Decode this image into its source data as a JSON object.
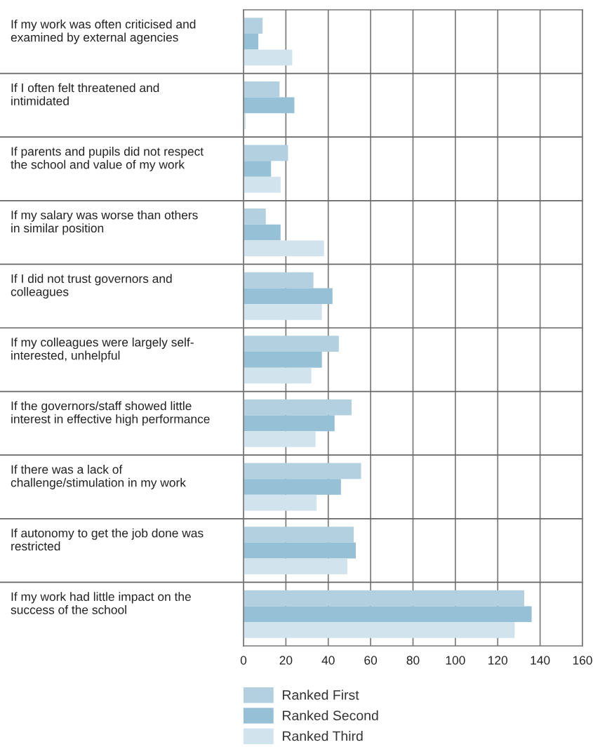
{
  "chart_data": {
    "type": "bar",
    "orientation": "horizontal",
    "categories": [
      "If my work was often criticised and\nexamined by external agencies",
      "If I often felt threatened and\nintimidated",
      "If parents and pupils did not respect\nthe school and value of my work",
      "If my salary was worse than others\nin similar position",
      "If I did not trust governors and\ncolleagues",
      "If my colleagues were largely self-\ninterested, unhelpful",
      "If the governors/staff showed little\ninterest in effective high performance",
      "If there was a lack of\nchallenge/stimulation in my work",
      "If autonomy to get the job done was\nrestricted",
      "If my work had little impact on the\nsuccess of the school"
    ],
    "series": [
      {
        "name": "Ranked First",
        "color": "#b2d0e0",
        "values": [
          9,
          17,
          21,
          10.5,
          33,
          45,
          51,
          55.5,
          52,
          132.5
        ]
      },
      {
        "name": "Ranked Second",
        "color": "#95c0d6",
        "values": [
          7,
          24,
          13,
          17.5,
          42,
          37,
          43,
          46,
          53,
          136
        ]
      },
      {
        "name": "Ranked Third",
        "color": "#d1e3ec",
        "values": [
          23,
          1,
          17.5,
          38,
          37,
          32,
          34,
          34.5,
          49,
          128
        ]
      }
    ],
    "xlim": [
      0,
      160
    ],
    "xticks": [
      0,
      20,
      40,
      60,
      80,
      100,
      120,
      140,
      160
    ],
    "grid": "x",
    "legend": "bottom"
  }
}
